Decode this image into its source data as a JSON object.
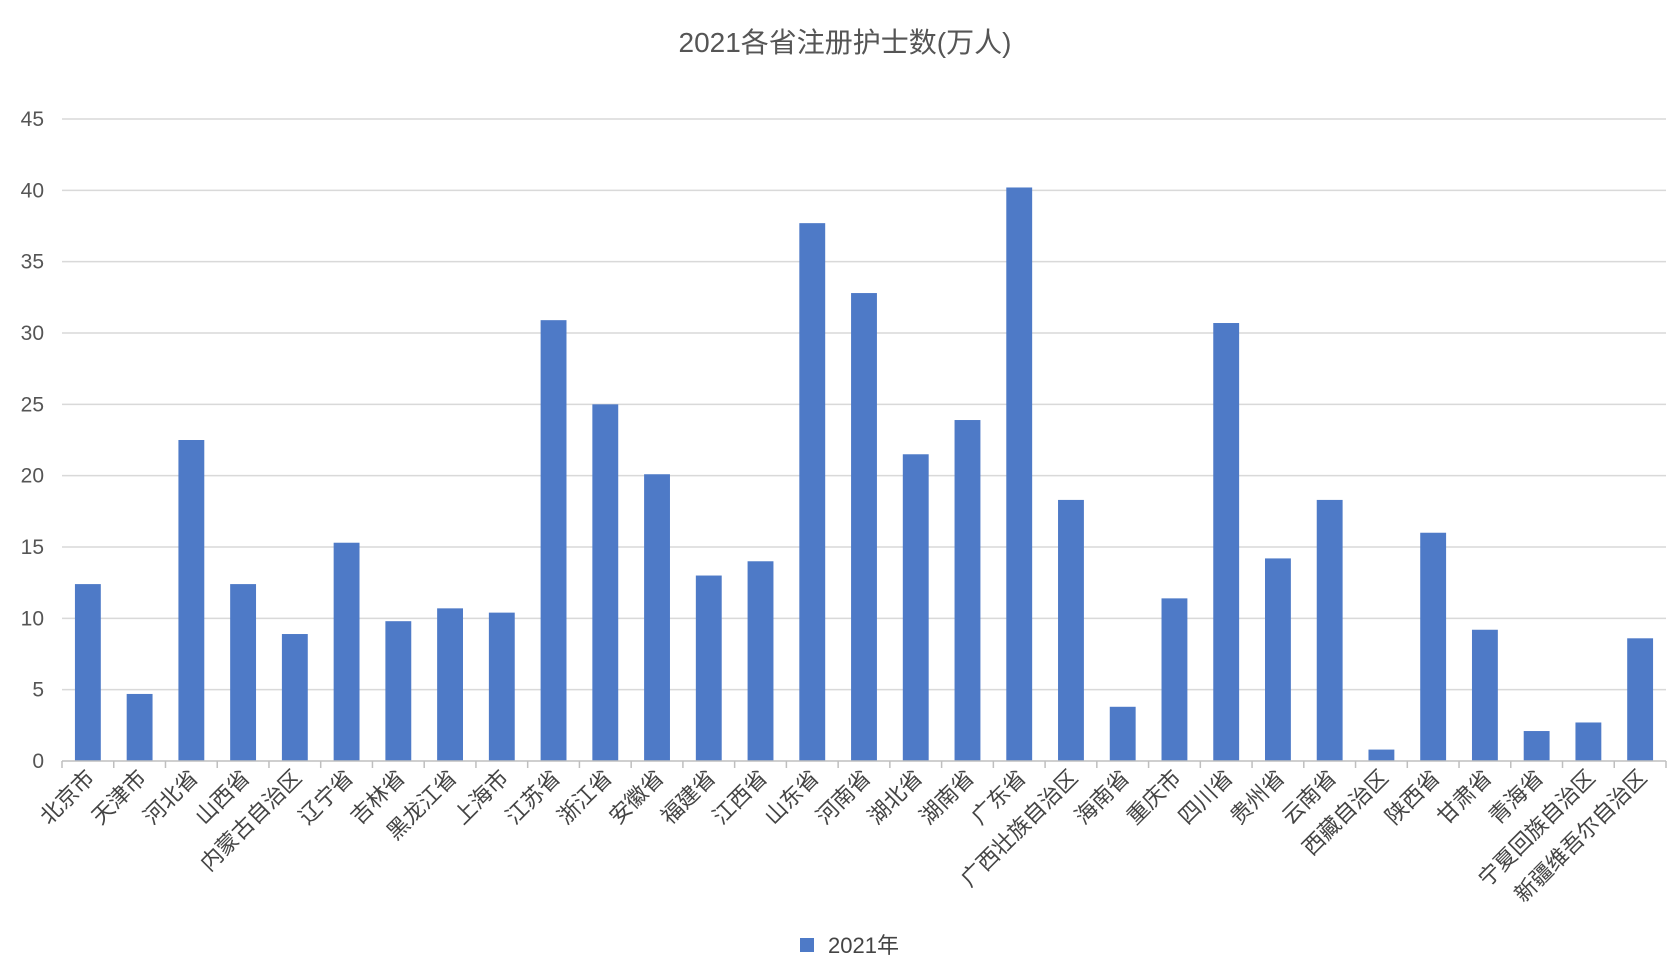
{
  "chart_data": {
    "type": "bar",
    "title": "2021各省注册护士数(万人)",
    "xlabel": "",
    "ylabel": "",
    "ylim": [
      0,
      45
    ],
    "yticks": [
      0,
      5,
      10,
      15,
      20,
      25,
      30,
      35,
      40,
      45
    ],
    "grid": true,
    "legend_position": "bottom",
    "categories": [
      "北京市",
      "天津市",
      "河北省",
      "山西省",
      "内蒙古自治区",
      "辽宁省",
      "吉林省",
      "黑龙江省",
      "上海市",
      "江苏省",
      "浙江省",
      "安徽省",
      "福建省",
      "江西省",
      "山东省",
      "河南省",
      "湖北省",
      "湖南省",
      "广东省",
      "广西壮族自治区",
      "海南省",
      "重庆市",
      "四川省",
      "贵州省",
      "云南省",
      "西藏自治区",
      "陕西省",
      "甘肃省",
      "青海省",
      "宁夏回族自治区",
      "新疆维吾尔自治区"
    ],
    "series": [
      {
        "name": "2021年",
        "color": "#4e7ac7",
        "values": [
          12.4,
          4.7,
          22.5,
          12.4,
          8.9,
          15.3,
          9.8,
          10.7,
          10.4,
          30.9,
          25.0,
          20.1,
          13.0,
          14.0,
          37.7,
          32.8,
          21.5,
          23.9,
          40.2,
          18.3,
          3.8,
          11.4,
          30.7,
          14.2,
          18.3,
          0.8,
          16.0,
          9.2,
          2.1,
          2.7,
          8.6
        ]
      }
    ]
  }
}
